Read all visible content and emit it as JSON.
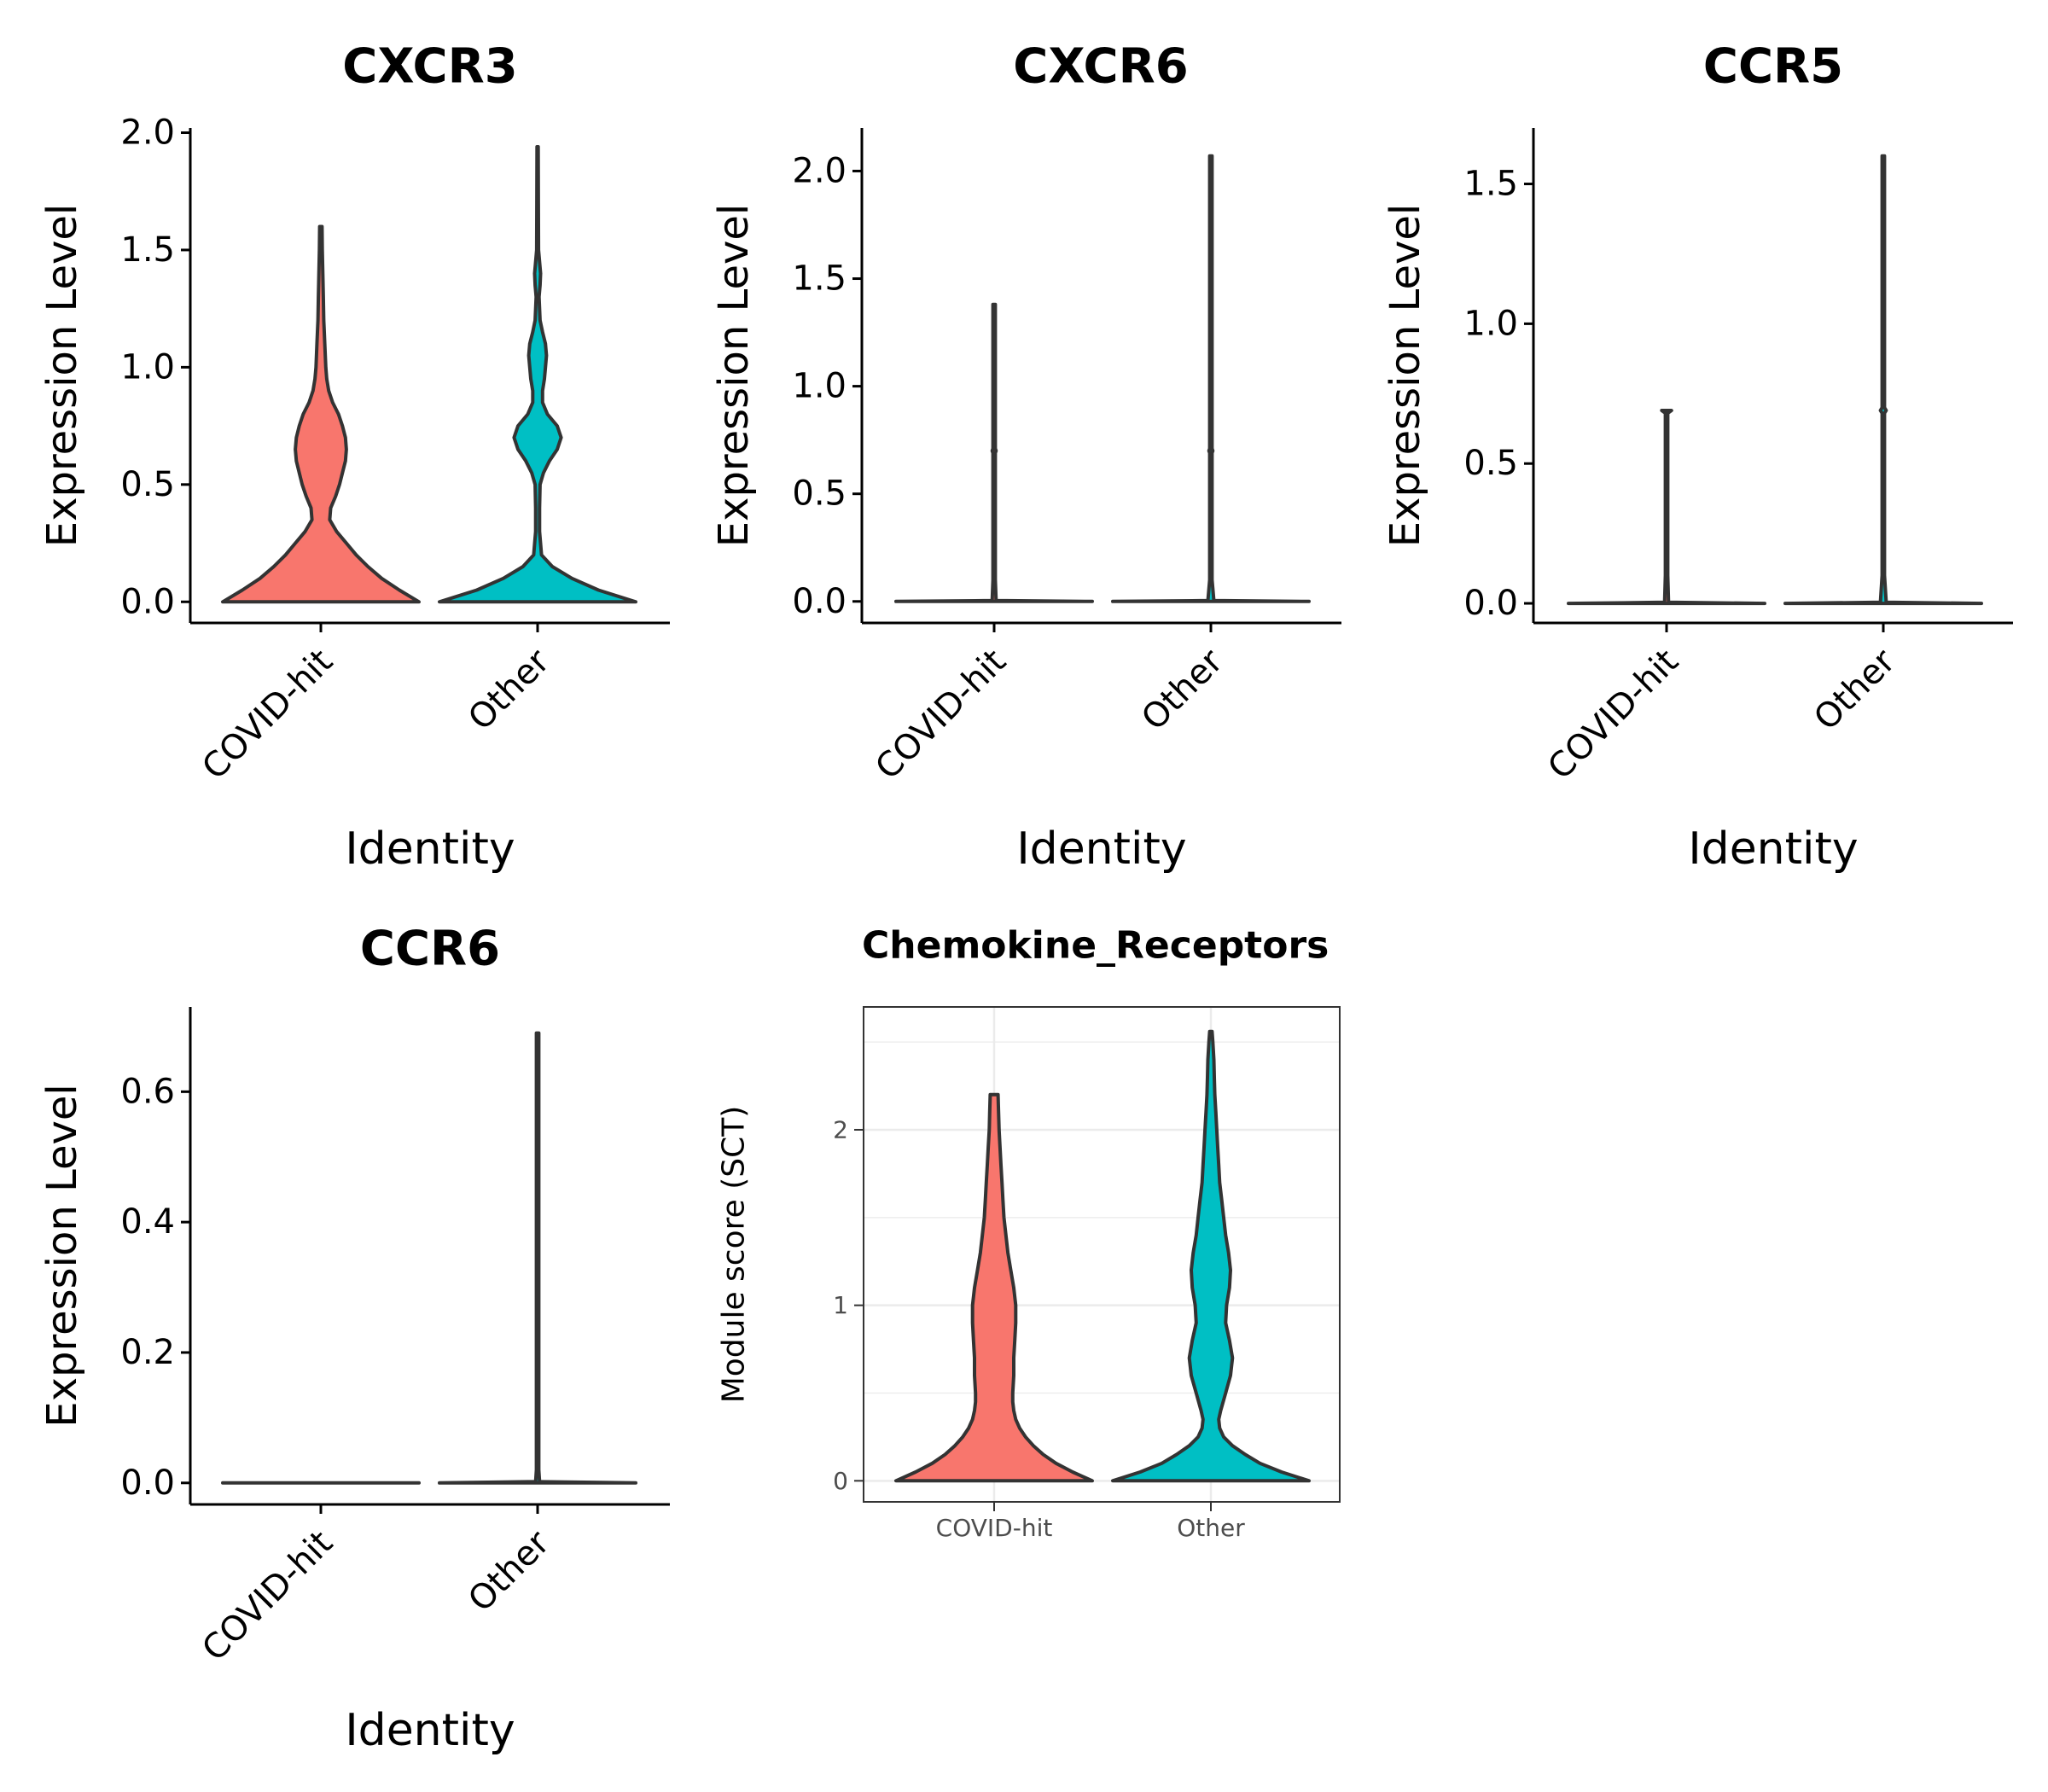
{
  "colors": {
    "covid": "#F8766D",
    "other": "#00BFC4",
    "outline": "#333333",
    "axis": "#000000",
    "grid": "#EBEBEB",
    "panel_border": "#333333",
    "module_tick_text": "#4D4D4D"
  },
  "chart_data": [
    {
      "type": "violin",
      "title": "CXCR3",
      "xlabel": "Identity",
      "ylabel": "Expression Level",
      "categories": [
        "COVID-hit",
        "Other"
      ],
      "ylim": [
        -0.09,
        2.02
      ],
      "yticks": [
        0.0,
        0.5,
        1.0,
        1.5,
        2.0
      ],
      "ytick_labels": [
        "0.0",
        "0.5",
        "1.0",
        "1.5",
        "2.0"
      ],
      "style": "classic",
      "series": [
        {
          "category": "COVID-hit",
          "fill": "covid",
          "width_scale": 1.0,
          "profile": [
            [
              0.0,
              1.0
            ],
            [
              0.05,
              0.8
            ],
            [
              0.1,
              0.62
            ],
            [
              0.15,
              0.48
            ],
            [
              0.2,
              0.36
            ],
            [
              0.25,
              0.26
            ],
            [
              0.3,
              0.16
            ],
            [
              0.35,
              0.09
            ],
            [
              0.4,
              0.1
            ],
            [
              0.45,
              0.15
            ],
            [
              0.5,
              0.19
            ],
            [
              0.55,
              0.22
            ],
            [
              0.6,
              0.25
            ],
            [
              0.65,
              0.26
            ],
            [
              0.7,
              0.25
            ],
            [
              0.75,
              0.22
            ],
            [
              0.8,
              0.18
            ],
            [
              0.85,
              0.12
            ],
            [
              0.9,
              0.08
            ],
            [
              0.95,
              0.06
            ],
            [
              1.0,
              0.05
            ],
            [
              1.1,
              0.04
            ],
            [
              1.2,
              0.03
            ],
            [
              1.3,
              0.025
            ],
            [
              1.4,
              0.02
            ],
            [
              1.5,
              0.015
            ],
            [
              1.6,
              0.012
            ]
          ]
        },
        {
          "category": "Other",
          "fill": "other",
          "width_scale": 1.0,
          "profile": [
            [
              0.0,
              1.0
            ],
            [
              0.05,
              0.62
            ],
            [
              0.1,
              0.35
            ],
            [
              0.15,
              0.15
            ],
            [
              0.2,
              0.04
            ],
            [
              0.3,
              0.02
            ],
            [
              0.4,
              0.02
            ],
            [
              0.5,
              0.025
            ],
            [
              0.55,
              0.06
            ],
            [
              0.6,
              0.12
            ],
            [
              0.65,
              0.2
            ],
            [
              0.7,
              0.24
            ],
            [
              0.75,
              0.2
            ],
            [
              0.8,
              0.1
            ],
            [
              0.85,
              0.05
            ],
            [
              0.9,
              0.05
            ],
            [
              0.95,
              0.07
            ],
            [
              1.0,
              0.08
            ],
            [
              1.05,
              0.09
            ],
            [
              1.1,
              0.08
            ],
            [
              1.15,
              0.05
            ],
            [
              1.2,
              0.025
            ],
            [
              1.3,
              0.015
            ],
            [
              1.35,
              0.025
            ],
            [
              1.4,
              0.03
            ],
            [
              1.45,
              0.02
            ],
            [
              1.5,
              0.01
            ],
            [
              1.7,
              0.008
            ],
            [
              1.94,
              0.006
            ]
          ]
        }
      ]
    },
    {
      "type": "violin",
      "title": "CXCR6",
      "xlabel": "Identity",
      "ylabel": "Expression Level",
      "categories": [
        "COVID-hit",
        "Other"
      ],
      "ylim": [
        -0.1,
        2.2
      ],
      "yticks": [
        0.0,
        0.5,
        1.0,
        1.5,
        2.0
      ],
      "ytick_labels": [
        "0.0",
        "0.5",
        "1.0",
        "1.5",
        "2.0"
      ],
      "style": "classic",
      "series": [
        {
          "category": "COVID-hit",
          "fill": "covid",
          "width_scale": 1.0,
          "profile": [
            [
              0.0,
              1.0
            ],
            [
              0.004,
              0.02
            ],
            [
              0.1,
              0.012
            ],
            [
              0.69,
              0.012
            ],
            [
              0.7,
              0.02
            ],
            [
              0.71,
              0.012
            ],
            [
              1.38,
              0.012
            ]
          ]
        },
        {
          "category": "Other",
          "fill": "other",
          "width_scale": 1.0,
          "profile": [
            [
              0.0,
              1.0
            ],
            [
              0.004,
              0.03
            ],
            [
              0.1,
              0.012
            ],
            [
              0.69,
              0.012
            ],
            [
              0.7,
              0.02
            ],
            [
              0.71,
              0.012
            ],
            [
              2.07,
              0.012
            ]
          ]
        }
      ]
    },
    {
      "type": "violin",
      "title": "CCR5",
      "xlabel": "Identity",
      "ylabel": "Expression Level",
      "categories": [
        "COVID-hit",
        "Other"
      ],
      "ylim": [
        -0.07,
        1.7
      ],
      "yticks": [
        0.0,
        0.5,
        1.0,
        1.5
      ],
      "ytick_labels": [
        "0.0",
        "0.5",
        "1.0",
        "1.5"
      ],
      "style": "classic",
      "series": [
        {
          "category": "COVID-hit",
          "fill": "covid",
          "width_scale": 1.0,
          "profile": [
            [
              0.0,
              1.0
            ],
            [
              0.004,
              0.02
            ],
            [
              0.1,
              0.012
            ],
            [
              0.68,
              0.012
            ],
            [
              0.69,
              0.05
            ],
            [
              0.69,
              0.0
            ]
          ]
        },
        {
          "category": "Other",
          "fill": "other",
          "width_scale": 1.0,
          "profile": [
            [
              0.0,
              1.0
            ],
            [
              0.004,
              0.03
            ],
            [
              0.1,
              0.012
            ],
            [
              0.68,
              0.012
            ],
            [
              0.69,
              0.03
            ],
            [
              0.7,
              0.012
            ],
            [
              1.6,
              0.012
            ]
          ]
        }
      ]
    },
    {
      "type": "violin",
      "title": "CCR6",
      "xlabel": "Identity",
      "ylabel": "Expression Level",
      "categories": [
        "COVID-hit",
        "Other"
      ],
      "ylim": [
        -0.033,
        0.73
      ],
      "yticks": [
        0.0,
        0.2,
        0.4,
        0.6
      ],
      "ytick_labels": [
        "0.0",
        "0.2",
        "0.4",
        "0.6"
      ],
      "style": "classic",
      "series": [
        {
          "category": "COVID-hit",
          "fill": "covid",
          "width_scale": 1.0,
          "profile": [
            [
              0.0,
              1.0
            ],
            [
              0.0,
              0.0
            ]
          ]
        },
        {
          "category": "Other",
          "fill": "other",
          "width_scale": 1.0,
          "profile": [
            [
              0.0,
              1.0
            ],
            [
              0.002,
              0.02
            ],
            [
              0.02,
              0.012
            ],
            [
              0.69,
              0.012
            ]
          ]
        }
      ]
    },
    {
      "type": "violin",
      "title": "Chemokine_Receptors",
      "xlabel": "",
      "ylabel": "Module score (SCT)",
      "categories": [
        "COVID-hit",
        "Other"
      ],
      "ylim": [
        -0.12,
        2.7
      ],
      "yticks": [
        0,
        1,
        2
      ],
      "ytick_labels": [
        "0",
        "1",
        "2"
      ],
      "grid": true,
      "style": "bw",
      "series": [
        {
          "category": "COVID-hit",
          "fill": "covid",
          "width_scale": 1.0,
          "profile": [
            [
              0.0,
              1.0
            ],
            [
              0.05,
              0.8
            ],
            [
              0.1,
              0.63
            ],
            [
              0.15,
              0.5
            ],
            [
              0.2,
              0.4
            ],
            [
              0.25,
              0.32
            ],
            [
              0.3,
              0.26
            ],
            [
              0.35,
              0.22
            ],
            [
              0.4,
              0.2
            ],
            [
              0.45,
              0.19
            ],
            [
              0.5,
              0.19
            ],
            [
              0.6,
              0.2
            ],
            [
              0.7,
              0.2
            ],
            [
              0.8,
              0.21
            ],
            [
              0.9,
              0.22
            ],
            [
              1.0,
              0.22
            ],
            [
              1.1,
              0.2
            ],
            [
              1.2,
              0.17
            ],
            [
              1.3,
              0.14
            ],
            [
              1.4,
              0.12
            ],
            [
              1.5,
              0.1
            ],
            [
              1.6,
              0.09
            ],
            [
              1.7,
              0.08
            ],
            [
              1.8,
              0.07
            ],
            [
              1.9,
              0.06
            ],
            [
              2.0,
              0.05
            ],
            [
              2.1,
              0.045
            ],
            [
              2.2,
              0.04
            ]
          ]
        },
        {
          "category": "Other",
          "fill": "other",
          "width_scale": 1.0,
          "profile": [
            [
              0.0,
              1.0
            ],
            [
              0.05,
              0.72
            ],
            [
              0.1,
              0.5
            ],
            [
              0.15,
              0.35
            ],
            [
              0.2,
              0.22
            ],
            [
              0.25,
              0.13
            ],
            [
              0.3,
              0.09
            ],
            [
              0.35,
              0.08
            ],
            [
              0.4,
              0.1
            ],
            [
              0.5,
              0.15
            ],
            [
              0.6,
              0.2
            ],
            [
              0.7,
              0.22
            ],
            [
              0.8,
              0.19
            ],
            [
              0.9,
              0.15
            ],
            [
              1.0,
              0.16
            ],
            [
              1.1,
              0.19
            ],
            [
              1.2,
              0.2
            ],
            [
              1.3,
              0.18
            ],
            [
              1.4,
              0.15
            ],
            [
              1.5,
              0.13
            ],
            [
              1.6,
              0.11
            ],
            [
              1.7,
              0.09
            ],
            [
              1.8,
              0.08
            ],
            [
              1.9,
              0.07
            ],
            [
              2.0,
              0.06
            ],
            [
              2.1,
              0.05
            ],
            [
              2.2,
              0.04
            ],
            [
              2.3,
              0.035
            ],
            [
              2.4,
              0.03
            ],
            [
              2.5,
              0.02
            ],
            [
              2.56,
              0.012
            ]
          ]
        }
      ]
    }
  ]
}
